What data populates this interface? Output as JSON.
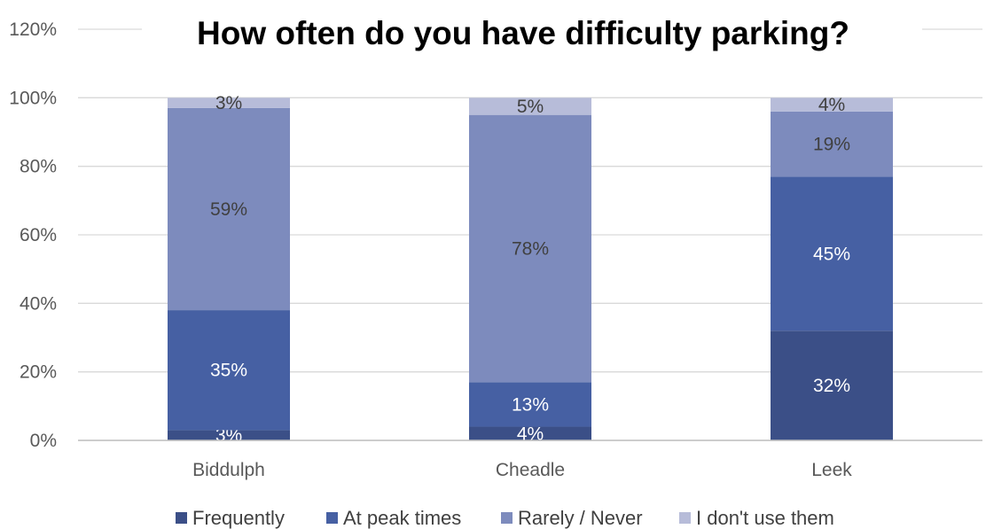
{
  "chart_data": {
    "type": "bar",
    "stacked": true,
    "title": "How often do you have difficulty parking?",
    "categories": [
      "Biddulph",
      "Cheadle",
      "Leek"
    ],
    "ylim": [
      0,
      120
    ],
    "yticks": [
      "0%",
      "20%",
      "40%",
      "60%",
      "80%",
      "100%",
      "120%"
    ],
    "grid": true,
    "legend_position": "bottom",
    "series": [
      {
        "name": "Frequently",
        "values": [
          3,
          4,
          32
        ],
        "labels": [
          "3%",
          "4%",
          "32%"
        ],
        "color": "#3b4f87",
        "label_color": "#ffffff"
      },
      {
        "name": "At peak times",
        "values": [
          35,
          13,
          45
        ],
        "labels": [
          "35%",
          "13%",
          "45%"
        ],
        "color": "#4660a3",
        "label_color": "#ffffff"
      },
      {
        "name": "Rarely / Never",
        "values": [
          59,
          78,
          19
        ],
        "labels": [
          "59%",
          "78%",
          "19%"
        ],
        "color": "#7d8bbd",
        "label_color": "#404040"
      },
      {
        "name": "I don't use them",
        "values": [
          3,
          5,
          4
        ],
        "labels": [
          "3%",
          "5%",
          "4%"
        ],
        "color": "#b7bcd9",
        "label_color": "#404040"
      }
    ]
  }
}
